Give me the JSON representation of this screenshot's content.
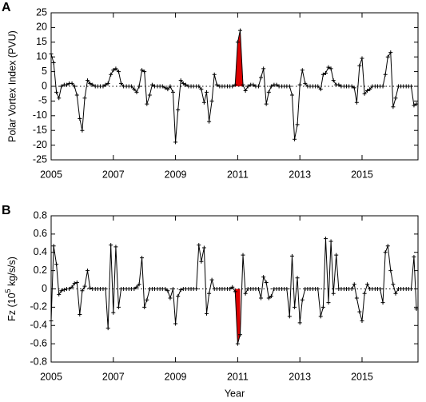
{
  "chart_data": [
    {
      "type": "line",
      "panel_label": "A",
      "y_label": "Polar Vortex Index (PVU)",
      "color": "#000000",
      "xlim": [
        2005,
        2016.8
      ],
      "xticks": [
        2005,
        2007,
        2009,
        2011,
        2013,
        2015
      ],
      "ylim": [
        -25,
        25
      ],
      "yticks": [
        25,
        20,
        15,
        10,
        5,
        0,
        -5,
        -10,
        -15,
        -20,
        -25
      ],
      "zero_line": "dotted",
      "marker": "+",
      "highlight": {
        "color": "#dd0000",
        "x_from": 2010.92,
        "x_to": 2011.17
      },
      "x": [
        2005,
        2005.08,
        2005.17,
        2005.25,
        2005.33,
        2005.42,
        2005.5,
        2005.58,
        2005.67,
        2005.75,
        2005.83,
        2005.92,
        2006,
        2006.08,
        2006.17,
        2006.25,
        2006.33,
        2006.42,
        2006.5,
        2006.58,
        2006.67,
        2006.75,
        2006.83,
        2006.92,
        2007,
        2007.08,
        2007.17,
        2007.25,
        2007.33,
        2007.42,
        2007.5,
        2007.58,
        2007.67,
        2007.75,
        2007.83,
        2007.92,
        2008,
        2008.08,
        2008.17,
        2008.25,
        2008.33,
        2008.42,
        2008.5,
        2008.58,
        2008.67,
        2008.75,
        2008.83,
        2008.92,
        2009,
        2009.08,
        2009.17,
        2009.25,
        2009.33,
        2009.42,
        2009.5,
        2009.58,
        2009.67,
        2009.75,
        2009.83,
        2009.92,
        2010,
        2010.08,
        2010.17,
        2010.25,
        2010.33,
        2010.42,
        2010.5,
        2010.58,
        2010.67,
        2010.75,
        2010.83,
        2010.92,
        2011,
        2011.08,
        2011.17,
        2011.25,
        2011.33,
        2011.42,
        2011.5,
        2011.58,
        2011.67,
        2011.75,
        2011.83,
        2011.92,
        2012,
        2012.08,
        2012.17,
        2012.25,
        2012.33,
        2012.42,
        2012.5,
        2012.58,
        2012.67,
        2012.75,
        2012.83,
        2012.92,
        2013,
        2013.08,
        2013.17,
        2013.25,
        2013.33,
        2013.42,
        2013.5,
        2013.58,
        2013.67,
        2013.75,
        2013.83,
        2013.92,
        2014,
        2014.08,
        2014.17,
        2014.25,
        2014.33,
        2014.42,
        2014.5,
        2014.58,
        2014.67,
        2014.75,
        2014.83,
        2014.92,
        2015,
        2015.08,
        2015.17,
        2015.25,
        2015.33,
        2015.42,
        2015.5,
        2015.58,
        2015.67,
        2015.75,
        2015.83,
        2015.92,
        2016,
        2016.08,
        2016.17,
        2016.25,
        2016.33,
        2016.42,
        2016.5,
        2016.58,
        2016.67,
        2016.75
      ],
      "values": [
        11,
        8,
        -2,
        -4,
        0,
        0.5,
        0.5,
        1,
        1,
        0,
        -3,
        -11,
        -15,
        -4,
        2,
        1,
        0.5,
        0,
        0,
        0,
        0,
        0.5,
        1,
        4,
        5.5,
        6,
        5,
        1,
        0,
        0,
        0,
        0,
        -1,
        -2,
        0,
        5.5,
        5,
        -6,
        -3,
        0.5,
        0,
        0,
        0,
        0,
        -0.5,
        -1,
        0,
        -2,
        -19,
        -8,
        2,
        1,
        0.5,
        0,
        0,
        0,
        0,
        0,
        -1,
        -5.5,
        -2,
        -12,
        -5,
        4,
        0.5,
        0,
        0,
        0,
        0,
        0,
        0,
        0.5,
        15,
        19,
        0.5,
        -1.5,
        0,
        0.5,
        0.5,
        0,
        0,
        3,
        6,
        -6,
        -2,
        0,
        0.5,
        0.5,
        0,
        0,
        0,
        0,
        0,
        -3,
        -18,
        -13,
        0.5,
        5.5,
        1,
        0,
        0,
        0,
        0,
        0,
        -1,
        4,
        4.5,
        6.5,
        6,
        2,
        0.5,
        0.5,
        0,
        0,
        0,
        0,
        0,
        -0.5,
        -5.5,
        7,
        9.5,
        -2.5,
        -1.5,
        -1,
        0,
        0,
        0,
        0,
        0,
        4,
        10,
        11.5,
        -7,
        -4,
        0,
        0,
        0,
        0,
        0,
        0,
        -6.5,
        -6
      ]
    },
    {
      "type": "line",
      "panel_label": "B",
      "y_label": {
        "before": "Fz (10",
        "sup": "5",
        "after": " kg/s/s)"
      },
      "x_label": "Year",
      "color": "#000000",
      "xlim": [
        2005,
        2016.8
      ],
      "xticks": [
        2005,
        2007,
        2009,
        2011,
        2013,
        2015
      ],
      "ylim": [
        -0.8,
        0.8
      ],
      "yticks": [
        0.8,
        0.6,
        0.4,
        0.2,
        0,
        -0.2,
        -0.4,
        -0.6,
        -0.8
      ],
      "zero_line": "dotted",
      "marker": "+",
      "highlight": {
        "color": "#dd0000",
        "x_from": 2010.92,
        "x_to": 2011.08
      },
      "x": [
        2005,
        2005.08,
        2005.17,
        2005.25,
        2005.33,
        2005.42,
        2005.5,
        2005.58,
        2005.67,
        2005.75,
        2005.83,
        2005.92,
        2006,
        2006.08,
        2006.17,
        2006.25,
        2006.33,
        2006.42,
        2006.5,
        2006.58,
        2006.67,
        2006.75,
        2006.83,
        2006.92,
        2007,
        2007.08,
        2007.17,
        2007.25,
        2007.33,
        2007.42,
        2007.5,
        2007.58,
        2007.67,
        2007.75,
        2007.83,
        2007.92,
        2008,
        2008.08,
        2008.17,
        2008.25,
        2008.33,
        2008.42,
        2008.5,
        2008.58,
        2008.67,
        2008.75,
        2008.83,
        2008.92,
        2009,
        2009.08,
        2009.17,
        2009.25,
        2009.33,
        2009.42,
        2009.5,
        2009.58,
        2009.67,
        2009.75,
        2009.83,
        2009.92,
        2010,
        2010.08,
        2010.17,
        2010.25,
        2010.33,
        2010.42,
        2010.5,
        2010.58,
        2010.67,
        2010.75,
        2010.83,
        2010.92,
        2011,
        2011.08,
        2011.17,
        2011.25,
        2011.33,
        2011.42,
        2011.5,
        2011.58,
        2011.67,
        2011.75,
        2011.83,
        2011.92,
        2012,
        2012.08,
        2012.17,
        2012.25,
        2012.33,
        2012.42,
        2012.5,
        2012.58,
        2012.67,
        2012.75,
        2012.83,
        2012.92,
        2013,
        2013.08,
        2013.17,
        2013.25,
        2013.33,
        2013.42,
        2013.5,
        2013.58,
        2013.67,
        2013.75,
        2013.83,
        2013.92,
        2014,
        2014.08,
        2014.17,
        2014.25,
        2014.33,
        2014.42,
        2014.5,
        2014.58,
        2014.67,
        2014.75,
        2014.83,
        2014.92,
        2015,
        2015.08,
        2015.17,
        2015.25,
        2015.33,
        2015.42,
        2015.5,
        2015.58,
        2015.67,
        2015.75,
        2015.83,
        2015.92,
        2016,
        2016.08,
        2016.17,
        2016.25,
        2016.33,
        2016.42,
        2016.5,
        2016.58,
        2016.67,
        2016.75
      ],
      "values": [
        -0.35,
        0.47,
        0.27,
        -0.06,
        -0.02,
        -0.01,
        0,
        0,
        0.02,
        0.06,
        0.07,
        -0.28,
        -0.02,
        0.03,
        0.2,
        0.01,
        0,
        0,
        0,
        0,
        0,
        0,
        -0.43,
        0.48,
        -0.26,
        0.46,
        -0.2,
        0,
        0,
        0,
        0,
        0,
        0,
        0.02,
        0.05,
        0.34,
        -0.2,
        -0.12,
        0,
        0,
        0,
        0,
        0,
        0,
        0,
        -0.02,
        -0.1,
        0,
        -0.38,
        -0.08,
        -0.01,
        0,
        0,
        0,
        0,
        0,
        0,
        0.48,
        0.3,
        0.45,
        -0.27,
        -0.05,
        0.1,
        0,
        0,
        0,
        0,
        0,
        0,
        0,
        0.02,
        -0.03,
        -0.6,
        -0.5,
        0.37,
        -0.05,
        0,
        0,
        0,
        0,
        0,
        -0.1,
        0.13,
        0.07,
        -0.1,
        -0.08,
        0,
        0,
        0,
        0,
        0,
        0,
        -0.3,
        0.36,
        -0.2,
        0.12,
        -0.37,
        -0.12,
        0,
        0,
        0,
        0,
        0,
        0,
        -0.3,
        -0.2,
        0.55,
        -0.15,
        0.52,
        -0.05,
        0.37,
        0,
        0,
        0,
        0,
        0,
        0,
        0.05,
        -0.1,
        -0.25,
        -0.35,
        -0.05,
        0.05,
        0,
        0,
        0,
        0,
        0,
        -0.15,
        0.4,
        0.47,
        0.2,
        0.05,
        -0.05,
        0,
        0,
        0,
        0,
        0,
        0,
        0.35,
        -0.22
      ]
    }
  ]
}
